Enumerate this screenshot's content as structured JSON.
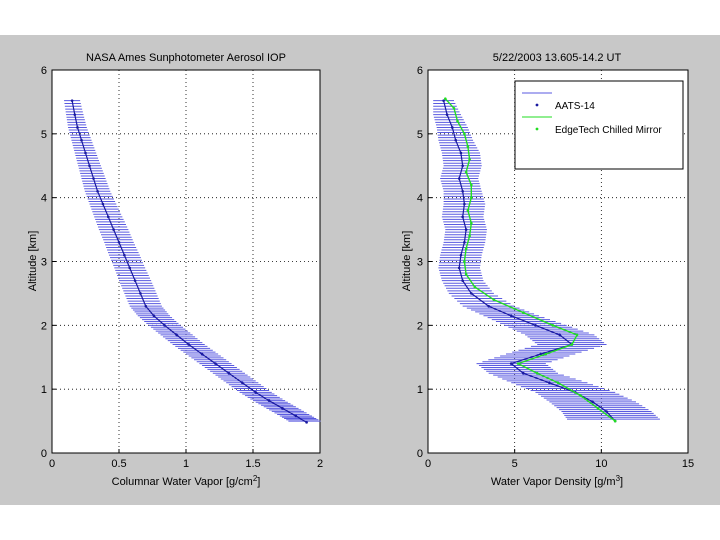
{
  "chart_data": [
    {
      "type": "line",
      "title": "NASA Ames Sunphotometer Aerosol IOP",
      "xlabel": "Columnar Water Vapor [g/cm",
      "xlabel_sup": "2",
      "xlabel_end": "]",
      "ylabel": "Altitude [km]",
      "xlim": [
        0,
        2
      ],
      "ylim": [
        0,
        6
      ],
      "xticks": [
        "0",
        "0.5",
        "1",
        "1.5",
        "2"
      ],
      "yticks": [
        "0",
        "1",
        "2",
        "3",
        "4",
        "5",
        "6"
      ],
      "grid": true,
      "series": [
        {
          "name": "AATS-14",
          "color": "#1a1aa0",
          "error_color": "#5a5ae0",
          "points": [
            {
              "x": 0.15,
              "y": 5.52,
              "err": 0.06
            },
            {
              "x": 0.17,
              "y": 5.3,
              "err": 0.065
            },
            {
              "x": 0.19,
              "y": 5.1,
              "err": 0.07
            },
            {
              "x": 0.22,
              "y": 4.9,
              "err": 0.075
            },
            {
              "x": 0.25,
              "y": 4.7,
              "err": 0.08
            },
            {
              "x": 0.28,
              "y": 4.5,
              "err": 0.085
            },
            {
              "x": 0.31,
              "y": 4.3,
              "err": 0.09
            },
            {
              "x": 0.34,
              "y": 4.1,
              "err": 0.095
            },
            {
              "x": 0.38,
              "y": 3.9,
              "err": 0.1
            },
            {
              "x": 0.42,
              "y": 3.7,
              "err": 0.105
            },
            {
              "x": 0.46,
              "y": 3.5,
              "err": 0.11
            },
            {
              "x": 0.5,
              "y": 3.3,
              "err": 0.11
            },
            {
              "x": 0.54,
              "y": 3.1,
              "err": 0.115
            },
            {
              "x": 0.58,
              "y": 2.9,
              "err": 0.115
            },
            {
              "x": 0.62,
              "y": 2.7,
              "err": 0.12
            },
            {
              "x": 0.66,
              "y": 2.5,
              "err": 0.12
            },
            {
              "x": 0.7,
              "y": 2.3,
              "err": 0.12
            },
            {
              "x": 0.76,
              "y": 2.15,
              "err": 0.12
            },
            {
              "x": 0.84,
              "y": 2.0,
              "err": 0.12
            },
            {
              "x": 0.93,
              "y": 1.85,
              "err": 0.12
            },
            {
              "x": 1.02,
              "y": 1.7,
              "err": 0.12
            },
            {
              "x": 1.12,
              "y": 1.55,
              "err": 0.12
            },
            {
              "x": 1.22,
              "y": 1.4,
              "err": 0.12
            },
            {
              "x": 1.32,
              "y": 1.25,
              "err": 0.12
            },
            {
              "x": 1.42,
              "y": 1.1,
              "err": 0.12
            },
            {
              "x": 1.52,
              "y": 0.95,
              "err": 0.12
            },
            {
              "x": 1.62,
              "y": 0.82,
              "err": 0.12
            },
            {
              "x": 1.72,
              "y": 0.7,
              "err": 0.12
            },
            {
              "x": 1.82,
              "y": 0.58,
              "err": 0.12
            },
            {
              "x": 1.9,
              "y": 0.48,
              "err": 0.12
            }
          ]
        }
      ]
    },
    {
      "type": "line",
      "title": "5/22/2003 13.605-14.2  UT",
      "xlabel": "Water Vapor Density [g/m",
      "xlabel_sup": "3",
      "xlabel_end": "]",
      "ylabel": "Altitude [km]",
      "xlim": [
        0,
        15
      ],
      "ylim": [
        0,
        6
      ],
      "xticks": [
        "0",
        "5",
        "10",
        "15"
      ],
      "yticks": [
        "0",
        "1",
        "2",
        "3",
        "4",
        "5",
        "6"
      ],
      "grid": true,
      "legend_position": "top-right",
      "legend": [
        "AATS-14",
        "EdgeTech Chilled Mirror"
      ],
      "series": [
        {
          "name": "AATS-14",
          "color": "#1a1aa0",
          "error_color": "#5a5ae0",
          "points": [
            {
              "x": 0.9,
              "y": 5.52,
              "err": 0.6
            },
            {
              "x": 1.1,
              "y": 5.3,
              "err": 0.8
            },
            {
              "x": 1.4,
              "y": 5.1,
              "err": 0.9
            },
            {
              "x": 1.6,
              "y": 4.9,
              "err": 1.0
            },
            {
              "x": 1.9,
              "y": 4.7,
              "err": 1.1
            },
            {
              "x": 2.0,
              "y": 4.5,
              "err": 1.1
            },
            {
              "x": 1.8,
              "y": 4.3,
              "err": 1.1
            },
            {
              "x": 2.0,
              "y": 4.1,
              "err": 1.1
            },
            {
              "x": 2.1,
              "y": 3.9,
              "err": 1.2
            },
            {
              "x": 2.0,
              "y": 3.7,
              "err": 1.2
            },
            {
              "x": 2.2,
              "y": 3.5,
              "err": 1.2
            },
            {
              "x": 2.1,
              "y": 3.3,
              "err": 1.2
            },
            {
              "x": 1.9,
              "y": 3.1,
              "err": 1.2
            },
            {
              "x": 1.8,
              "y": 2.9,
              "err": 1.2
            },
            {
              "x": 2.0,
              "y": 2.7,
              "err": 1.2
            },
            {
              "x": 2.5,
              "y": 2.5,
              "err": 1.3
            },
            {
              "x": 3.5,
              "y": 2.3,
              "err": 1.5
            },
            {
              "x": 4.8,
              "y": 2.15,
              "err": 1.6
            },
            {
              "x": 6.2,
              "y": 2.0,
              "err": 1.8
            },
            {
              "x": 7.6,
              "y": 1.85,
              "err": 2.0
            },
            {
              "x": 8.3,
              "y": 1.7,
              "err": 2.0
            },
            {
              "x": 6.5,
              "y": 1.55,
              "err": 2.0
            },
            {
              "x": 4.8,
              "y": 1.4,
              "err": 2.0
            },
            {
              "x": 5.5,
              "y": 1.25,
              "err": 2.0
            },
            {
              "x": 7.0,
              "y": 1.1,
              "err": 2.2
            },
            {
              "x": 8.5,
              "y": 0.95,
              "err": 2.3
            },
            {
              "x": 9.5,
              "y": 0.8,
              "err": 2.5
            },
            {
              "x": 10.3,
              "y": 0.65,
              "err": 2.6
            },
            {
              "x": 10.8,
              "y": 0.5,
              "err": 2.7
            }
          ]
        },
        {
          "name": "EdgeTech Chilled Mirror",
          "color": "#22dd22",
          "points": [
            {
              "x": 1.0,
              "y": 5.55
            },
            {
              "x": 1.5,
              "y": 5.4
            },
            {
              "x": 1.7,
              "y": 5.2
            },
            {
              "x": 2.1,
              "y": 5.0
            },
            {
              "x": 2.3,
              "y": 4.8
            },
            {
              "x": 2.4,
              "y": 4.6
            },
            {
              "x": 2.2,
              "y": 4.4
            },
            {
              "x": 2.5,
              "y": 4.2
            },
            {
              "x": 2.5,
              "y": 4.0
            },
            {
              "x": 2.3,
              "y": 3.8
            },
            {
              "x": 2.5,
              "y": 3.6
            },
            {
              "x": 2.4,
              "y": 3.4
            },
            {
              "x": 2.2,
              "y": 3.2
            },
            {
              "x": 2.1,
              "y": 3.0
            },
            {
              "x": 2.2,
              "y": 2.8
            },
            {
              "x": 2.7,
              "y": 2.6
            },
            {
              "x": 3.8,
              "y": 2.4
            },
            {
              "x": 5.5,
              "y": 2.2
            },
            {
              "x": 7.2,
              "y": 2.0
            },
            {
              "x": 8.6,
              "y": 1.85
            },
            {
              "x": 8.3,
              "y": 1.7
            },
            {
              "x": 6.8,
              "y": 1.55
            },
            {
              "x": 5.2,
              "y": 1.4
            },
            {
              "x": 6.3,
              "y": 1.25
            },
            {
              "x": 7.5,
              "y": 1.1
            },
            {
              "x": 8.8,
              "y": 0.9
            },
            {
              "x": 9.8,
              "y": 0.7
            },
            {
              "x": 10.8,
              "y": 0.5
            }
          ]
        }
      ]
    }
  ]
}
